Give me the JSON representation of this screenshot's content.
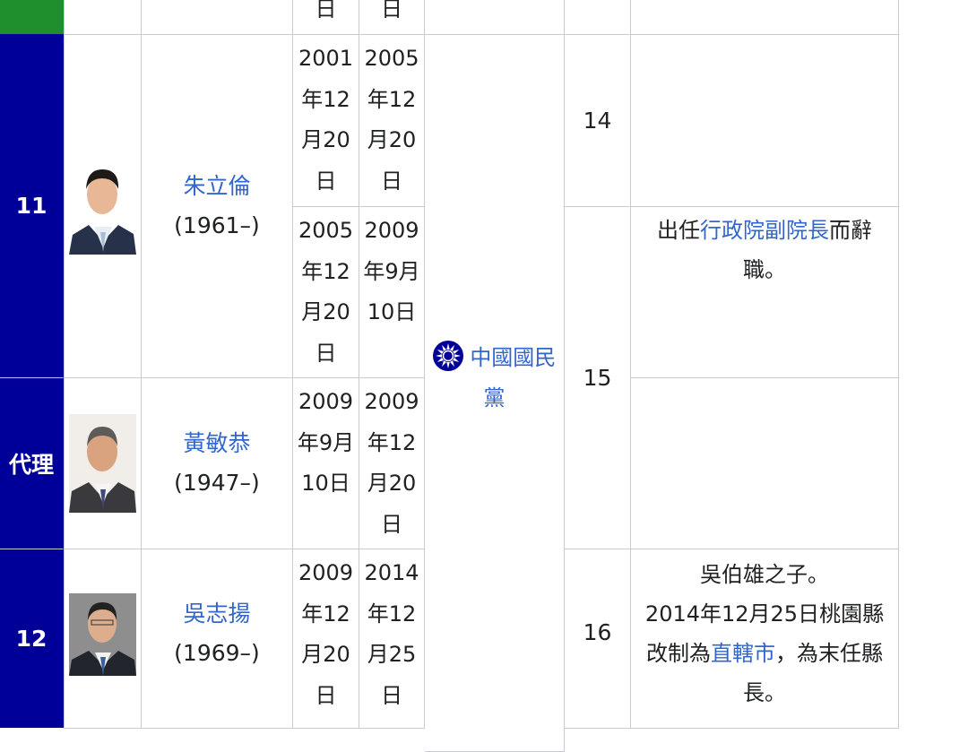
{
  "colors": {
    "previous_party": "#1f8f2e",
    "kmt": "#000099",
    "link": "#3366cc"
  },
  "rows": {
    "prev": {
      "start_tail": "日",
      "end_tail": "日"
    },
    "r11": {
      "number": "11",
      "name": "朱立倫",
      "years": "(1961–)",
      "terms": [
        {
          "start": "2001年12月20日",
          "end": "2005年12月20日",
          "term": "14",
          "note": ""
        },
        {
          "start": "2005年12月20日",
          "end": "2009年9月10日",
          "term": "15",
          "note_pre": "出任",
          "note_link": "行政院副院長",
          "note_post": "而辭職。"
        }
      ]
    },
    "acting": {
      "number": "代理",
      "name": "黃敏恭",
      "years": "(1947–)",
      "start": "2009年9月10日",
      "end": "2009年12月20日"
    },
    "r12": {
      "number": "12",
      "name": "吳志揚",
      "years": "(1969–)",
      "start": "2009年12月20日",
      "end": "2014年12月25日",
      "term": "16",
      "note_line1": "吳伯雄之子。",
      "note_pre": "2014年12月25日桃園縣改制為",
      "note_link": "直轄市",
      "note_post": "，為末任縣長。"
    }
  },
  "party": {
    "icon": "kmt-emblem-icon",
    "name": "中國國民黨"
  }
}
